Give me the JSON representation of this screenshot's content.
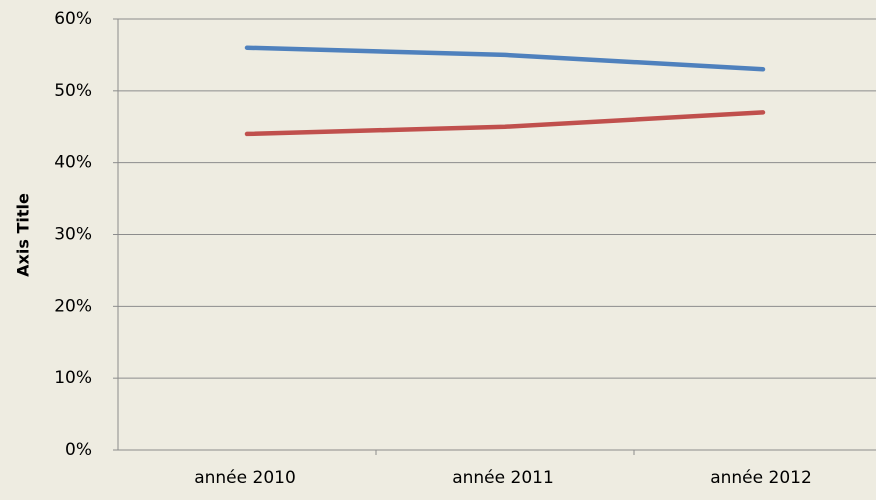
{
  "chart_data": {
    "type": "line",
    "y_label": "Axis Title",
    "categories": [
      "année 2010",
      "année 2011",
      "année 2012"
    ],
    "series": [
      {
        "color": "#4f81bd",
        "values": [
          56,
          55,
          53
        ]
      },
      {
        "color": "#c0504d",
        "values": [
          44,
          45,
          47
        ]
      }
    ],
    "ylim": [
      0,
      60
    ],
    "yticks": [
      {
        "value": 0,
        "label": "0%"
      },
      {
        "value": 10,
        "label": "10%"
      },
      {
        "value": 20,
        "label": "20%"
      },
      {
        "value": 30,
        "label": "30%"
      },
      {
        "value": 40,
        "label": "40%"
      },
      {
        "value": 50,
        "label": "50%"
      },
      {
        "value": 60,
        "label": "60%"
      }
    ],
    "grid": true
  }
}
